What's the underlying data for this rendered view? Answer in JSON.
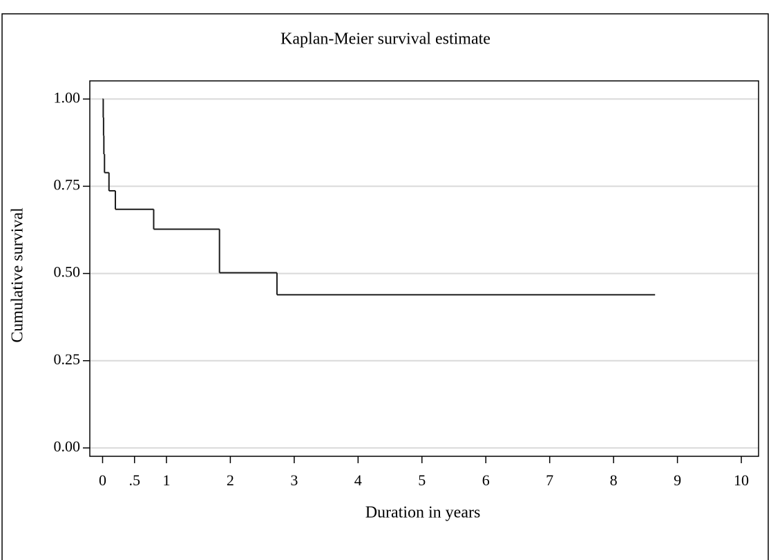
{
  "chart_data": {
    "type": "step",
    "title": "Kaplan-Meier survival estimate",
    "x_label": "Duration in years",
    "y_label": "Cumulative survival",
    "x": [
      0,
      0.01,
      0.015,
      0.02,
      0.03,
      0.1,
      0.2,
      0.8,
      1.83,
      2.73,
      8.65
    ],
    "values": [
      1,
      0.947,
      0.895,
      0.842,
      0.789,
      0.737,
      0.684,
      0.627,
      0.502,
      0.439,
      0.439
    ],
    "color": "#1a1a1a",
    "xlim": [
      -0.2,
      10.27
    ],
    "ylim": [
      -0.024,
      1.052
    ],
    "xticks": [
      0,
      {
        "value": 0.5,
        "label": ".5"
      },
      1,
      2,
      3,
      4,
      5,
      6,
      7,
      8,
      9,
      10
    ],
    "yticks": [
      {
        "value": 0,
        "label": "0.00"
      },
      {
        "value": 0.25,
        "label": "0.25"
      },
      {
        "value": 0.5,
        "label": "0.50"
      },
      {
        "value": 0.75,
        "label": "0.75"
      },
      {
        "value": 1,
        "label": "1.00"
      }
    ],
    "grid": true
  }
}
